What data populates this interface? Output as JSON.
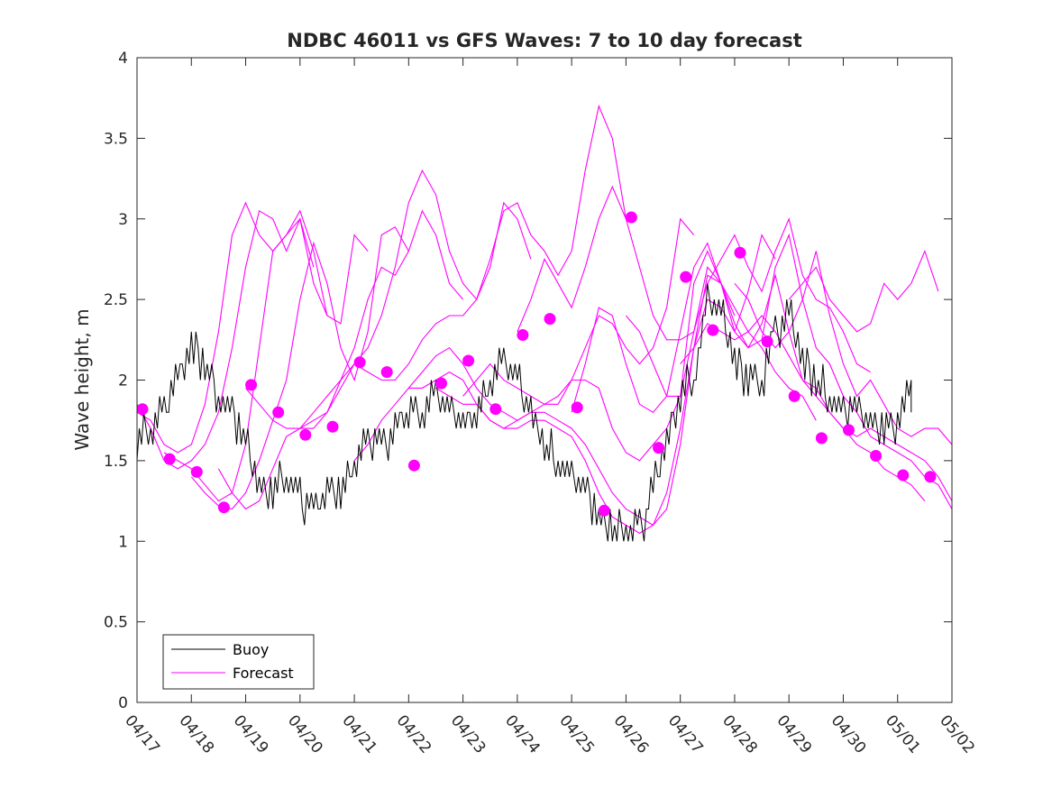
{
  "chart_data": {
    "type": "line",
    "title": "NDBC 46011 vs GFS Waves: 7 to 10 day forecast",
    "ylabel": "Wave height, m",
    "xlabel": "",
    "xlim": [
      "04/17",
      "05/02"
    ],
    "ylim": [
      0,
      4
    ],
    "x_tick_labels": [
      "04/17",
      "04/18",
      "04/19",
      "04/20",
      "04/21",
      "04/22",
      "04/23",
      "04/24",
      "04/25",
      "04/26",
      "04/27",
      "04/28",
      "04/29",
      "04/30",
      "05/01",
      "05/02"
    ],
    "y_tick_labels": [
      "0",
      "0.5",
      "1",
      "1.5",
      "2",
      "2.5",
      "3",
      "3.5",
      "4"
    ],
    "y_tick_values": [
      0,
      0.5,
      1,
      1.5,
      2,
      2.5,
      3,
      3.5,
      4
    ],
    "grid": false,
    "legend": {
      "position": "bottom-left",
      "entries": [
        "Buoy",
        "Forecast"
      ]
    },
    "colors": {
      "buoy": "#000000",
      "forecast": "#ff00ff"
    },
    "series": [
      {
        "name": "Buoy",
        "role": "observed",
        "x": [
          0.0,
          0.25,
          0.5,
          0.75,
          1.0,
          1.25,
          1.5,
          1.75,
          2.0,
          2.25,
          2.5,
          2.75,
          3.0,
          3.25,
          3.5,
          3.75,
          4.0,
          4.25,
          4.5,
          4.75,
          5.0,
          5.25,
          5.5,
          5.75,
          6.0,
          6.25,
          6.5,
          6.75,
          7.0,
          7.25,
          7.5,
          7.75,
          8.0,
          8.25,
          8.5,
          8.75,
          9.0,
          9.25,
          9.5,
          9.75,
          10.0,
          10.25,
          10.5,
          10.75,
          11.0,
          11.25,
          11.5,
          11.75,
          12.0,
          12.25,
          12.5,
          12.75,
          13.0,
          13.25,
          13.5,
          13.75,
          14.0,
          14.25
        ],
        "values": [
          1.6,
          1.7,
          1.8,
          2.0,
          2.2,
          2.1,
          1.9,
          1.8,
          1.6,
          1.35,
          1.3,
          1.4,
          1.25,
          1.2,
          1.3,
          1.3,
          1.5,
          1.6,
          1.6,
          1.7,
          1.8,
          1.8,
          1.9,
          1.8,
          1.7,
          1.8,
          2.0,
          2.1,
          2.0,
          1.8,
          1.6,
          1.5,
          1.4,
          1.3,
          1.15,
          1.1,
          1.05,
          1.05,
          1.3,
          1.6,
          1.9,
          2.0,
          2.5,
          2.4,
          2.1,
          2.0,
          2.0,
          2.3,
          2.4,
          2.1,
          2.0,
          1.9,
          1.8,
          1.8,
          1.7,
          1.7,
          1.75,
          1.9
        ]
      },
      {
        "name": "Forecast",
        "role": "run",
        "x": [
          0.0,
          0.25,
          0.5,
          0.75,
          1.0,
          1.25,
          1.5,
          1.75,
          2.0,
          2.25,
          2.5,
          2.75,
          3.0,
          3.25
        ],
        "values": [
          1.8,
          1.75,
          1.6,
          1.55,
          1.6,
          1.85,
          2.3,
          2.9,
          3.1,
          2.9,
          2.8,
          2.9,
          3.0,
          2.7
        ]
      },
      {
        "name": "Forecast",
        "role": "run",
        "x": [
          0.0,
          0.25,
          0.5,
          0.75,
          1.0,
          1.25,
          1.5,
          1.75,
          2.0,
          2.25,
          2.5,
          2.75,
          3.0,
          3.25,
          3.5
        ],
        "values": [
          1.85,
          1.7,
          1.5,
          1.45,
          1.5,
          1.6,
          1.8,
          2.2,
          2.7,
          3.05,
          3.0,
          2.8,
          3.0,
          2.6,
          2.4
        ]
      },
      {
        "name": "Forecast",
        "role": "run",
        "x": [
          0.5,
          0.75,
          1.0,
          1.25,
          1.5,
          1.75,
          2.0,
          2.25,
          2.5,
          2.75,
          3.0,
          3.25,
          3.5,
          3.75,
          4.0,
          4.25
        ],
        "values": [
          1.55,
          1.5,
          1.45,
          1.35,
          1.25,
          1.3,
          1.6,
          2.2,
          2.8,
          2.9,
          3.05,
          2.8,
          2.4,
          2.35,
          2.9,
          2.8
        ]
      },
      {
        "name": "Forecast",
        "role": "run",
        "x": [
          1.0,
          1.25,
          1.5,
          1.75,
          2.0,
          2.25,
          2.5,
          2.75,
          3.0,
          3.25,
          3.5,
          3.75,
          4.0,
          4.25,
          4.5,
          4.75,
          5.0
        ],
        "values": [
          1.4,
          1.3,
          1.22,
          1.2,
          1.3,
          1.5,
          1.75,
          2.0,
          2.5,
          2.85,
          2.6,
          2.2,
          2.0,
          2.3,
          2.9,
          2.95,
          2.8
        ]
      },
      {
        "name": "Forecast",
        "role": "run",
        "x": [
          1.5,
          1.75,
          2.0,
          2.25,
          2.5,
          2.75,
          3.0,
          3.25,
          3.5,
          3.75,
          4.0,
          4.25,
          4.5,
          4.75,
          5.0,
          5.25,
          5.5,
          5.75,
          6.0
        ],
        "values": [
          1.45,
          1.3,
          1.2,
          1.25,
          1.45,
          1.65,
          1.7,
          1.7,
          1.8,
          2.0,
          2.2,
          2.5,
          2.7,
          2.65,
          2.8,
          3.05,
          2.9,
          2.6,
          2.5
        ]
      },
      {
        "name": "Forecast",
        "role": "run",
        "x": [
          2.0,
          2.25,
          2.5,
          2.75,
          3.0,
          3.25,
          3.5,
          3.75,
          4.0,
          4.25,
          4.5,
          4.75,
          5.0,
          5.25,
          5.5,
          5.75,
          6.0,
          6.25,
          6.5,
          6.75,
          7.0,
          7.25
        ],
        "values": [
          1.95,
          1.85,
          1.75,
          1.7,
          1.7,
          1.75,
          1.8,
          1.95,
          2.1,
          2.2,
          2.4,
          2.7,
          3.1,
          3.3,
          3.15,
          2.8,
          2.6,
          2.5,
          2.7,
          3.1,
          3.0,
          2.75
        ]
      },
      {
        "name": "Forecast",
        "role": "run",
        "x": [
          3.0,
          3.25,
          3.5,
          3.75,
          4.0,
          4.25,
          4.5,
          4.75,
          5.0,
          5.25,
          5.5,
          5.75,
          6.0,
          6.25,
          6.5,
          6.75,
          7.0,
          7.25,
          7.5,
          7.75,
          8.0,
          8.25,
          8.5,
          8.75,
          9.0
        ],
        "values": [
          1.7,
          1.8,
          1.9,
          2.0,
          2.1,
          2.05,
          2.0,
          2.0,
          2.1,
          2.25,
          2.35,
          2.4,
          2.4,
          2.5,
          2.75,
          3.05,
          3.1,
          2.9,
          2.8,
          2.65,
          2.8,
          3.3,
          3.7,
          3.5,
          3.0
        ]
      },
      {
        "name": "Forecast",
        "role": "run",
        "x": [
          4.0,
          4.25,
          4.5,
          4.75,
          5.0,
          5.25,
          5.5,
          5.75,
          6.0,
          6.25,
          6.5,
          6.75,
          7.0,
          7.25,
          7.5,
          7.75,
          8.0,
          8.25,
          8.5,
          8.75,
          9.0,
          9.25,
          9.5,
          9.75,
          10.0,
          10.25
        ],
        "values": [
          1.5,
          1.6,
          1.75,
          1.85,
          1.95,
          2.05,
          2.15,
          2.2,
          2.1,
          1.95,
          1.85,
          1.8,
          1.75,
          1.8,
          1.85,
          1.9,
          2.0,
          2.2,
          2.4,
          2.35,
          2.2,
          2.1,
          2.2,
          2.45,
          3.0,
          2.9
        ]
      },
      {
        "name": "Forecast",
        "role": "run",
        "x": [
          5.0,
          5.25,
          5.5,
          5.75,
          6.0,
          6.25,
          6.5,
          6.75,
          7.0,
          7.25,
          7.5,
          7.75,
          8.0,
          8.25,
          8.5,
          8.75,
          9.0,
          9.25,
          9.5,
          9.75,
          10.0,
          10.25,
          10.5,
          10.75,
          11.0
        ],
        "values": [
          1.95,
          1.95,
          2.0,
          2.05,
          2.0,
          1.85,
          1.75,
          1.7,
          1.75,
          1.8,
          1.8,
          1.75,
          1.7,
          1.6,
          1.45,
          1.3,
          1.2,
          1.15,
          1.1,
          1.2,
          1.6,
          2.2,
          2.65,
          2.6,
          2.4
        ]
      },
      {
        "name": "Forecast",
        "role": "run",
        "x": [
          5.5,
          5.75,
          6.0,
          6.25,
          6.5,
          6.75,
          7.0,
          7.25,
          7.5,
          7.75,
          8.0,
          8.25,
          8.5,
          8.75,
          9.0,
          9.25,
          9.5,
          9.75,
          10.0,
          10.25,
          10.5,
          10.75,
          11.0,
          11.25,
          11.5,
          11.75
        ],
        "values": [
          1.95,
          1.9,
          1.85,
          1.85,
          1.75,
          1.7,
          1.7,
          1.75,
          1.75,
          1.7,
          1.65,
          1.5,
          1.3,
          1.15,
          1.1,
          1.05,
          1.1,
          1.3,
          1.7,
          2.2,
          2.5,
          2.45,
          2.3,
          2.55,
          2.9,
          2.75
        ]
      },
      {
        "name": "Forecast",
        "role": "run",
        "x": [
          6.0,
          6.25,
          6.5,
          6.75,
          7.0,
          7.25,
          7.5,
          7.75,
          8.0,
          8.25,
          8.5,
          8.75,
          9.0,
          9.25,
          9.5,
          9.75,
          10.0,
          10.25,
          10.5,
          10.75,
          11.0,
          11.25,
          11.5,
          11.75,
          12.0,
          12.25,
          12.5
        ],
        "values": [
          1.9,
          2.0,
          2.1,
          2.0,
          1.95,
          1.9,
          1.85,
          1.85,
          2.0,
          2.0,
          1.95,
          1.7,
          1.55,
          1.5,
          1.6,
          1.7,
          1.9,
          2.6,
          2.8,
          2.6,
          2.45,
          2.3,
          2.2,
          2.05,
          1.95,
          1.9,
          1.75
        ]
      },
      {
        "name": "Forecast",
        "role": "run",
        "x": [
          7.0,
          7.25,
          7.5,
          7.75,
          8.0,
          8.25,
          8.5,
          8.75,
          9.0,
          9.25,
          9.5,
          9.75,
          10.0,
          10.25,
          10.5,
          10.75,
          11.0,
          11.25,
          11.5,
          11.75,
          12.0,
          12.25,
          12.5,
          12.75,
          13.0,
          13.25,
          13.5
        ],
        "values": [
          2.3,
          2.5,
          2.75,
          2.6,
          2.45,
          2.7,
          3.0,
          3.2,
          3.0,
          2.7,
          2.4,
          2.25,
          2.25,
          2.3,
          2.6,
          2.75,
          2.9,
          2.7,
          2.55,
          2.8,
          3.0,
          2.65,
          2.5,
          2.45,
          2.3,
          2.1,
          2.05
        ]
      },
      {
        "name": "Forecast",
        "role": "run",
        "x": [
          8.0,
          8.25,
          8.5,
          8.75,
          9.0,
          9.25,
          9.5,
          9.75,
          10.0,
          10.25,
          10.5,
          10.75,
          11.0,
          11.25,
          11.5,
          11.75,
          12.0,
          12.25,
          12.5,
          12.75,
          13.0,
          13.25,
          13.5,
          13.75,
          14.0,
          14.25,
          14.5
        ],
        "values": [
          1.8,
          2.1,
          2.45,
          2.4,
          2.1,
          1.85,
          1.8,
          1.9,
          2.3,
          2.7,
          2.85,
          2.6,
          2.3,
          2.2,
          2.35,
          2.65,
          2.3,
          2.0,
          1.9,
          1.8,
          1.7,
          1.6,
          1.55,
          1.45,
          1.4,
          1.35,
          1.25
        ]
      },
      {
        "name": "Forecast",
        "role": "run",
        "x": [
          9.0,
          9.25,
          9.5,
          9.75,
          10.0,
          10.25,
          10.5,
          10.75,
          11.0,
          11.25,
          11.5,
          11.75,
          12.0,
          12.25,
          12.5,
          12.75,
          13.0,
          13.25,
          13.5,
          13.75,
          14.0,
          14.25,
          14.5,
          14.75,
          15.0
        ],
        "values": [
          2.4,
          2.3,
          2.1,
          1.9,
          1.9,
          2.3,
          2.7,
          2.6,
          2.35,
          2.2,
          2.25,
          2.7,
          2.9,
          2.5,
          2.2,
          2.1,
          1.9,
          1.8,
          1.65,
          1.6,
          1.55,
          1.5,
          1.4,
          1.35,
          1.2
        ]
      },
      {
        "name": "Forecast",
        "role": "run",
        "x": [
          10.0,
          10.25,
          10.5,
          10.75,
          11.0,
          11.25,
          11.5,
          11.75,
          12.0,
          12.25,
          12.5,
          12.75,
          13.0,
          13.25,
          13.5,
          13.75,
          14.0,
          14.25,
          14.5,
          14.75,
          15.0
        ],
        "values": [
          2.1,
          2.2,
          2.35,
          2.3,
          2.25,
          2.3,
          2.4,
          2.3,
          2.15,
          2.0,
          1.95,
          1.8,
          1.7,
          1.65,
          1.7,
          1.65,
          1.6,
          1.55,
          1.5,
          1.4,
          1.25
        ]
      },
      {
        "name": "Forecast",
        "role": "run",
        "x": [
          11.0,
          11.25,
          11.5,
          11.75,
          12.0,
          12.25,
          12.5,
          12.75,
          13.0,
          13.25,
          13.5,
          13.75,
          14.0,
          14.25,
          14.5,
          14.75,
          15.0
        ],
        "values": [
          2.6,
          2.5,
          2.3,
          2.2,
          2.3,
          2.5,
          2.8,
          2.4,
          2.1,
          1.9,
          2.0,
          1.85,
          1.7,
          1.65,
          1.7,
          1.7,
          1.6
        ]
      },
      {
        "name": "Forecast",
        "role": "run",
        "x": [
          12.0,
          12.25,
          12.5,
          12.75,
          13.0,
          13.25,
          13.5,
          13.75,
          14.0,
          14.25,
          14.5,
          14.75
        ],
        "values": [
          2.5,
          2.6,
          2.7,
          2.5,
          2.4,
          2.3,
          2.35,
          2.6,
          2.5,
          2.6,
          2.8,
          2.55
        ]
      },
      {
        "name": "Forecast",
        "role": "markers",
        "x": [
          0.1,
          0.6,
          1.1,
          1.6,
          2.1,
          2.6,
          3.1,
          3.6,
          4.1,
          4.6,
          5.1,
          5.6,
          6.1,
          6.6,
          7.1,
          7.6,
          8.1,
          8.6,
          9.1,
          9.6,
          10.1,
          10.6,
          11.1,
          11.6,
          12.1,
          12.6,
          13.1,
          13.6,
          14.1,
          14.6
        ],
        "values": [
          1.82,
          1.51,
          1.43,
          1.21,
          1.97,
          1.8,
          1.66,
          1.71,
          2.11,
          2.05,
          1.47,
          1.98,
          2.12,
          1.82,
          2.28,
          2.38,
          1.83,
          1.19,
          3.01,
          1.58,
          2.64,
          2.31,
          2.79,
          2.24,
          1.9,
          1.64,
          1.69,
          1.53,
          1.41,
          1.4
        ]
      }
    ]
  }
}
